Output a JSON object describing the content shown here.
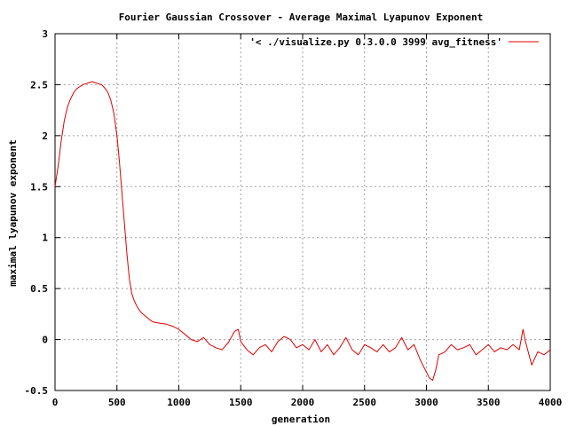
{
  "chart_data": {
    "type": "line",
    "title": "Fourier Gaussian Crossover - Average Maximal Lyapunov Exponent",
    "xlabel": "generation",
    "ylabel": "maximal lyapunov exponent",
    "xlim": [
      0,
      4000
    ],
    "ylim": [
      -0.5,
      3
    ],
    "xticks": [
      0,
      500,
      1000,
      1500,
      2000,
      2500,
      3000,
      3500,
      4000
    ],
    "xtick_labels": [
      "0",
      "500",
      "1000",
      "1500",
      "2000",
      "2500",
      "3000",
      "3500",
      "4000"
    ],
    "yticks": [
      -0.5,
      0,
      0.5,
      1,
      1.5,
      2,
      2.5,
      3
    ],
    "ytick_labels": [
      "-0.5",
      "0",
      "0.5",
      "1",
      "1.5",
      "2",
      "2.5",
      "3"
    ],
    "grid": true,
    "legend_position": "top-right",
    "series": [
      {
        "name": "'< ./visualize.py 0.3.0.0 3999 avg_fitness'",
        "color": "#dd0000",
        "x": [
          0,
          25,
          50,
          75,
          100,
          125,
          150,
          175,
          200,
          225,
          250,
          275,
          300,
          325,
          350,
          375,
          400,
          425,
          450,
          475,
          500,
          520,
          540,
          560,
          580,
          600,
          620,
          640,
          660,
          680,
          700,
          720,
          740,
          760,
          780,
          800,
          850,
          900,
          950,
          1000,
          1050,
          1100,
          1150,
          1200,
          1250,
          1300,
          1350,
          1400,
          1450,
          1480,
          1500,
          1550,
          1600,
          1650,
          1700,
          1750,
          1800,
          1850,
          1900,
          1950,
          2000,
          2050,
          2100,
          2150,
          2200,
          2250,
          2300,
          2350,
          2400,
          2450,
          2500,
          2550,
          2600,
          2650,
          2700,
          2750,
          2800,
          2850,
          2900,
          2950,
          3000,
          3025,
          3050,
          3075,
          3100,
          3150,
          3200,
          3250,
          3300,
          3350,
          3400,
          3450,
          3500,
          3550,
          3600,
          3650,
          3700,
          3750,
          3780,
          3800,
          3850,
          3900,
          3950,
          4000
        ],
        "y": [
          1.5,
          1.7,
          1.95,
          2.15,
          2.28,
          2.36,
          2.42,
          2.46,
          2.48,
          2.5,
          2.51,
          2.52,
          2.53,
          2.52,
          2.51,
          2.5,
          2.47,
          2.43,
          2.35,
          2.22,
          2.0,
          1.75,
          1.45,
          1.15,
          0.85,
          0.6,
          0.45,
          0.38,
          0.33,
          0.29,
          0.26,
          0.24,
          0.22,
          0.2,
          0.18,
          0.17,
          0.16,
          0.15,
          0.13,
          0.1,
          0.05,
          0.0,
          -0.02,
          0.02,
          -0.05,
          -0.08,
          -0.1,
          -0.03,
          0.08,
          0.1,
          -0.02,
          -0.1,
          -0.15,
          -0.08,
          -0.05,
          -0.12,
          -0.02,
          0.03,
          0.0,
          -0.08,
          -0.05,
          -0.1,
          0.0,
          -0.12,
          -0.05,
          -0.15,
          -0.08,
          0.02,
          -0.1,
          -0.15,
          -0.05,
          -0.08,
          -0.12,
          -0.05,
          -0.12,
          -0.08,
          0.02,
          -0.1,
          -0.05,
          -0.2,
          -0.32,
          -0.38,
          -0.4,
          -0.3,
          -0.15,
          -0.12,
          -0.05,
          -0.1,
          -0.08,
          -0.05,
          -0.15,
          -0.1,
          -0.05,
          -0.12,
          -0.08,
          -0.1,
          -0.05,
          -0.1,
          0.1,
          -0.02,
          -0.25,
          -0.12,
          -0.15,
          -0.1
        ]
      }
    ]
  }
}
